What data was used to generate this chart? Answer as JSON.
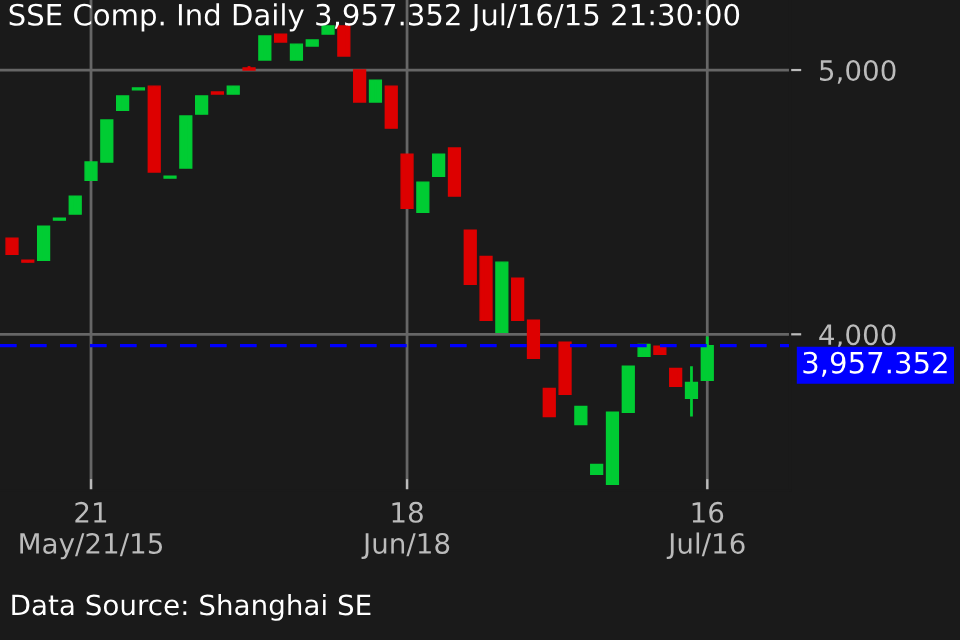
{
  "chart_data": {
    "type": "candlestick",
    "title": "SSE Comp. Ind Daily 3,957.352 Jul/16/15 21:30:00",
    "categories": [
      null,
      null,
      null,
      null,
      null,
      "21\nMay/21/15",
      null,
      null,
      null,
      null,
      null,
      null,
      null,
      null,
      null,
      null,
      null,
      null,
      null,
      null,
      null,
      null,
      null,
      null,
      null,
      "18\nJun/18",
      null,
      null,
      null,
      null,
      null,
      null,
      null,
      null,
      null,
      null,
      null,
      null,
      null,
      null,
      null,
      null,
      null,
      null,
      "16\nJul/16"
    ],
    "ohlc": [
      [
        4364,
        4364,
        4303,
        4303
      ],
      [
        4280,
        4280,
        4273,
        4273
      ],
      [
        4280,
        4409,
        4280,
        4409
      ],
      [
        4432,
        4439,
        4432,
        4439
      ],
      [
        4455,
        4523,
        4455,
        4523
      ],
      [
        4583,
        4652,
        4583,
        4652
      ],
      [
        4652,
        4811,
        4652,
        4811
      ],
      [
        4848,
        4902,
        4848,
        4902
      ],
      [
        4925,
        4932,
        4925,
        4932
      ],
      [
        4939,
        4939,
        4614,
        4614
      ],
      [
        4591,
        4598,
        4591,
        4598
      ],
      [
        4629,
        4826,
        4629,
        4826
      ],
      [
        4833,
        4902,
        4833,
        4902
      ],
      [
        4917,
        4917,
        4909,
        4909
      ],
      [
        4909,
        4939,
        4909,
        4939
      ],
      [
        5008,
        5015,
        5000,
        5000
      ],
      [
        5038,
        5129,
        5038,
        5129
      ],
      [
        5136,
        5136,
        5106,
        5106
      ],
      [
        5038,
        5098,
        5038,
        5098
      ],
      [
        5091,
        5114,
        5091,
        5114
      ],
      [
        5136,
        5167,
        5136,
        5167
      ],
      [
        5167,
        5167,
        5053,
        5053
      ],
      [
        5000,
        5000,
        4879,
        4879
      ],
      [
        4879,
        4962,
        4879,
        4962
      ],
      [
        4939,
        4939,
        4780,
        4780
      ],
      [
        4682,
        4682,
        4477,
        4477
      ],
      [
        4462,
        4576,
        4462,
        4576
      ],
      [
        4598,
        4682,
        4598,
        4682
      ],
      [
        4705,
        4705,
        4523,
        4523
      ],
      [
        4394,
        4394,
        4189,
        4189
      ],
      [
        4295,
        4295,
        4053,
        4053
      ],
      [
        4008,
        4273,
        4008,
        4273
      ],
      [
        4212,
        4212,
        4053,
        4053
      ],
      [
        4053,
        4053,
        3909,
        3909
      ],
      [
        3795,
        3795,
        3689,
        3689
      ],
      [
        3970,
        3970,
        3773,
        3773
      ],
      [
        3659,
        3727,
        3659,
        3727
      ],
      [
        3470,
        3508,
        3470,
        3508
      ],
      [
        3432,
        3705,
        3432,
        3705
      ],
      [
        3705,
        3879,
        3705,
        3879
      ],
      [
        3917,
        3962,
        3917,
        3962
      ],
      [
        3955,
        3955,
        3924,
        3924
      ],
      [
        3871,
        3871,
        3803,
        3803
      ],
      [
        3758,
        3879,
        3689,
        3818
      ],
      [
        3826,
        3992,
        3826,
        3957.352
      ]
    ],
    "colors": [
      "#dd0000",
      "#dd0000",
      "#00cc33",
      "#00cc33",
      "#00cc33",
      "#00cc33",
      "#00cc33",
      "#00cc33",
      "#00cc33",
      "#dd0000",
      "#00cc33",
      "#00cc33",
      "#00cc33",
      "#dd0000",
      "#00cc33",
      "#dd0000",
      "#00cc33",
      "#dd0000",
      "#00cc33",
      "#00cc33",
      "#00cc33",
      "#dd0000",
      "#dd0000",
      "#00cc33",
      "#dd0000",
      "#dd0000",
      "#00cc33",
      "#00cc33",
      "#dd0000",
      "#dd0000",
      "#dd0000",
      "#00cc33",
      "#dd0000",
      "#dd0000",
      "#dd0000",
      "#dd0000",
      "#00cc33",
      "#00cc33",
      "#00cc33",
      "#00cc33",
      "#00cc33",
      "#dd0000",
      "#dd0000",
      "#00cc33",
      "#00cc33"
    ],
    "ylim": [
      3410,
      5265
    ],
    "yticks": [
      {
        "value": 5000,
        "label": "5,000"
      },
      {
        "value": 4000,
        "label": "4,000"
      }
    ],
    "grid": true,
    "ref_lines": [
      {
        "axis": "y",
        "value": 3957.352,
        "label": "3,957.352",
        "color": "#0000ff",
        "line_style": "dashed"
      }
    ],
    "annotations": [
      "Data Source: Shanghai SE"
    ]
  }
}
